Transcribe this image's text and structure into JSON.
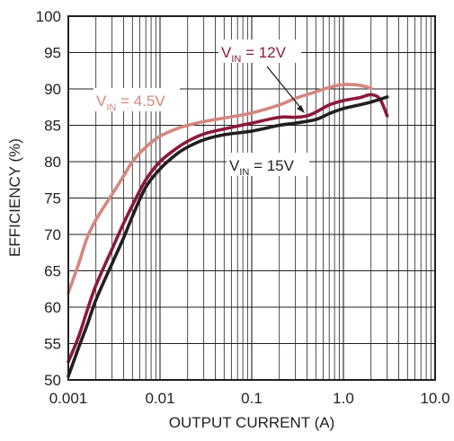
{
  "chart_data": {
    "type": "line",
    "xlabel": "OUTPUT CURRENT (A)",
    "ylabel": "EFFICIENCY (%)",
    "xscale": "log",
    "xlim": [
      0.001,
      10
    ],
    "ylim": [
      50,
      100
    ],
    "grid": true,
    "x_ticks": [
      "0.001",
      "0.01",
      "0.1",
      "1.0",
      "10.0"
    ],
    "y_ticks": [
      "50",
      "55",
      "60",
      "65",
      "70",
      "75",
      "80",
      "85",
      "90",
      "95",
      "100"
    ],
    "series": [
      {
        "name": "V_IN = 4.5V",
        "label_main": "V",
        "label_sub": "IN",
        "label_rest": " = 4.5V",
        "color": "#d4877f",
        "points": [
          [
            0.001,
            62
          ],
          [
            0.0013,
            66
          ],
          [
            0.0016,
            69.5
          ],
          [
            0.002,
            72
          ],
          [
            0.003,
            75.5
          ],
          [
            0.004,
            78
          ],
          [
            0.005,
            80
          ],
          [
            0.007,
            82
          ],
          [
            0.01,
            83.5
          ],
          [
            0.015,
            84.5
          ],
          [
            0.02,
            85
          ],
          [
            0.03,
            85.5
          ],
          [
            0.05,
            86
          ],
          [
            0.1,
            86.7
          ],
          [
            0.2,
            87.8
          ],
          [
            0.3,
            88.7
          ],
          [
            0.5,
            89.6
          ],
          [
            0.7,
            90.2
          ],
          [
            1.0,
            90.6
          ],
          [
            1.5,
            90.5
          ],
          [
            2.0,
            90.1
          ]
        ]
      },
      {
        "name": "V_IN = 12V",
        "label_main": "V",
        "label_sub": "IN",
        "label_rest": " = 12V",
        "color": "#8b1a3a",
        "points": [
          [
            0.001,
            52.5
          ],
          [
            0.0013,
            56
          ],
          [
            0.0016,
            59.5
          ],
          [
            0.002,
            63
          ],
          [
            0.003,
            68
          ],
          [
            0.004,
            71.5
          ],
          [
            0.005,
            74
          ],
          [
            0.007,
            77.5
          ],
          [
            0.01,
            80
          ],
          [
            0.015,
            81.8
          ],
          [
            0.02,
            82.8
          ],
          [
            0.03,
            83.8
          ],
          [
            0.05,
            84.5
          ],
          [
            0.1,
            85.3
          ],
          [
            0.2,
            86.1
          ],
          [
            0.3,
            86.1
          ],
          [
            0.4,
            86.3
          ],
          [
            0.5,
            86.8
          ],
          [
            0.7,
            87.8
          ],
          [
            1.0,
            88.4
          ],
          [
            1.5,
            88.8
          ],
          [
            2.0,
            89.2
          ],
          [
            2.5,
            88.6
          ],
          [
            3.0,
            86.3
          ]
        ]
      },
      {
        "name": "V_IN = 15V",
        "label_main": "V",
        "label_sub": "IN",
        "label_rest": " = 15V",
        "color": "#231f20",
        "points": [
          [
            0.001,
            50.5
          ],
          [
            0.0013,
            54.5
          ],
          [
            0.0016,
            57.5
          ],
          [
            0.002,
            61
          ],
          [
            0.003,
            66
          ],
          [
            0.004,
            69.5
          ],
          [
            0.005,
            72.5
          ],
          [
            0.007,
            76.5
          ],
          [
            0.01,
            79
          ],
          [
            0.015,
            81
          ],
          [
            0.02,
            82
          ],
          [
            0.03,
            83
          ],
          [
            0.05,
            83.7
          ],
          [
            0.1,
            84.2
          ],
          [
            0.2,
            85
          ],
          [
            0.3,
            85.3
          ],
          [
            0.5,
            85.8
          ],
          [
            0.7,
            86.6
          ],
          [
            1.0,
            87.3
          ],
          [
            1.5,
            87.8
          ],
          [
            2.0,
            88.2
          ],
          [
            3.0,
            88.9
          ]
        ]
      }
    ]
  }
}
